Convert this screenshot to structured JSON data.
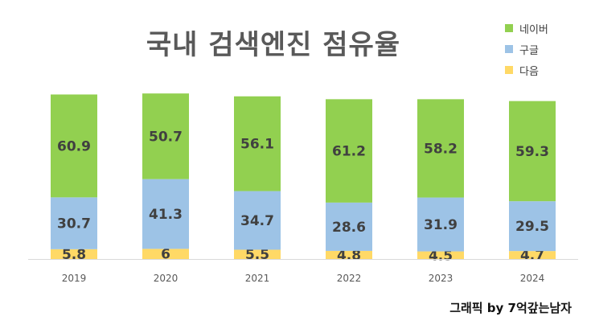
{
  "chart_data": {
    "type": "bar",
    "stacked": true,
    "title": "국내 검색엔진 점유율",
    "categories": [
      "2019",
      "2020",
      "2021",
      "2022",
      "2023",
      "2024"
    ],
    "series": [
      {
        "name": "다음",
        "color": "#ffd966",
        "values": [
          5.8,
          6,
          5.5,
          4.8,
          4.5,
          4.7
        ],
        "labels": [
          "5.8",
          "6",
          "5.5",
          "4.8",
          "4.5",
          "4.7"
        ]
      },
      {
        "name": "구글",
        "color": "#9dc3e6",
        "values": [
          30.7,
          41.3,
          34.7,
          28.6,
          31.9,
          29.5
        ],
        "labels": [
          "30.7",
          "41.3",
          "34.7",
          "28.6",
          "31.9",
          "29.5"
        ]
      },
      {
        "name": "네이버",
        "color": "#92d050",
        "values": [
          60.9,
          50.7,
          56.1,
          61.2,
          58.2,
          59.3
        ],
        "labels": [
          "60.9",
          "50.7",
          "56.1",
          "61.2",
          "58.2",
          "59.3"
        ]
      }
    ],
    "legend_order": [
      "네이버",
      "구글",
      "다음"
    ],
    "legend_position": "top-right",
    "ylim": [
      0,
      100
    ],
    "grid": false,
    "xlabel": "",
    "ylabel": ""
  },
  "credit": "그래픽 by 7억갚는남자",
  "colors": {
    "axis": "#d9d9d9",
    "label_text": "#404040",
    "title_text": "#595959"
  }
}
